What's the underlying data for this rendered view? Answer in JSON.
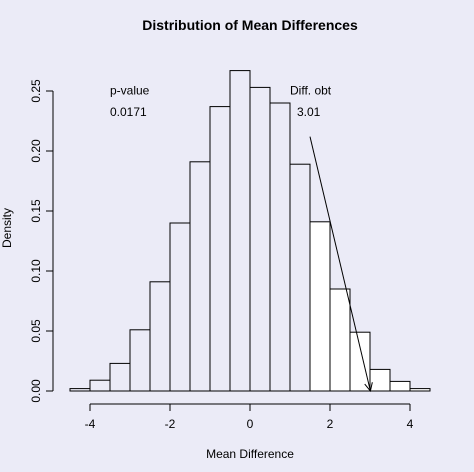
{
  "chart_data": {
    "type": "bar",
    "title": "Distribution of Mean Differences",
    "xlabel": "Mean Difference",
    "ylabel": "Density",
    "xlim": [
      -4.5,
      4.5
    ],
    "ylim": [
      0,
      0.27
    ],
    "x_ticks": [
      -4,
      -2,
      0,
      2,
      4
    ],
    "y_ticks": [
      0.0,
      0.05,
      0.1,
      0.15,
      0.2,
      0.25
    ],
    "y_tick_labels": [
      "0.00",
      "0.05",
      "0.10",
      "0.15",
      "0.20",
      "0.25"
    ],
    "grid": false,
    "bins": [
      {
        "x0": -4.5,
        "x1": -4.0,
        "density": 0.002
      },
      {
        "x0": -4.0,
        "x1": -3.5,
        "density": 0.009
      },
      {
        "x0": -3.5,
        "x1": -3.0,
        "density": 0.023
      },
      {
        "x0": -3.0,
        "x1": -2.5,
        "density": 0.051
      },
      {
        "x0": -2.5,
        "x1": -2.0,
        "density": 0.091
      },
      {
        "x0": -2.0,
        "x1": -1.5,
        "density": 0.14
      },
      {
        "x0": -1.5,
        "x1": -1.0,
        "density": 0.191
      },
      {
        "x0": -1.0,
        "x1": -0.5,
        "density": 0.237
      },
      {
        "x0": -0.5,
        "x1": 0.0,
        "density": 0.267
      },
      {
        "x0": 0.0,
        "x1": 0.5,
        "density": 0.253
      },
      {
        "x0": 0.5,
        "x1": 1.0,
        "density": 0.24
      },
      {
        "x0": 1.0,
        "x1": 1.5,
        "density": 0.189
      },
      {
        "x0": 1.5,
        "x1": 2.0,
        "density": 0.141
      },
      {
        "x0": 2.0,
        "x1": 2.5,
        "density": 0.085
      },
      {
        "x0": 2.5,
        "x1": 3.0,
        "density": 0.049
      },
      {
        "x0": 3.0,
        "x1": 3.5,
        "density": 0.018
      },
      {
        "x0": 3.5,
        "x1": 4.0,
        "density": 0.008
      },
      {
        "x0": 4.0,
        "x1": 4.5,
        "density": 0.002
      }
    ],
    "shaded_from_x": 1.5,
    "shade_color": "#ffffff",
    "arrow": {
      "from": [
        1.5,
        0.212
      ],
      "to": [
        3.01,
        0.0
      ]
    },
    "annotations": [
      {
        "label": "p-value",
        "value": "0.0171",
        "x": -3.5,
        "y_label": 0.247,
        "y_value": 0.229
      },
      {
        "label": "Diff. obt",
        "value": "3.01",
        "x": 1.0,
        "y_label": 0.247,
        "y_value": 0.229
      }
    ]
  }
}
